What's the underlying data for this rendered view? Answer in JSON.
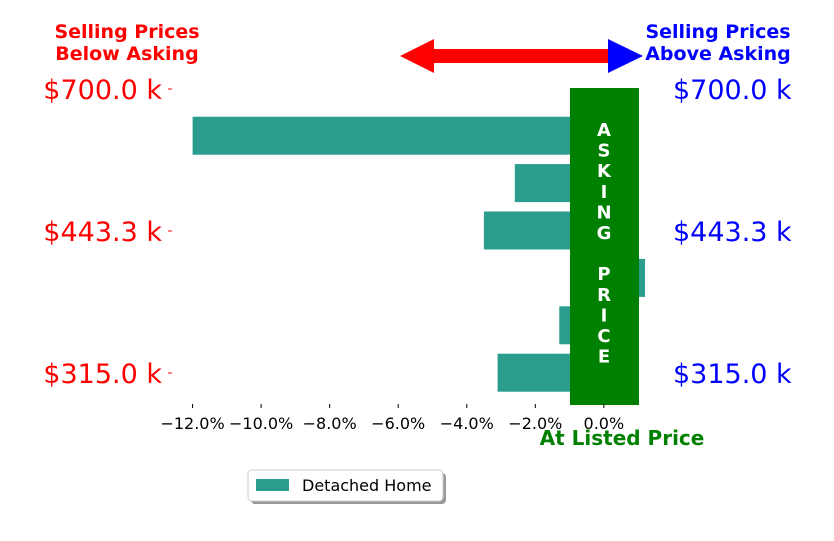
{
  "header": {
    "left_line1": "Selling Prices",
    "left_line2": "Below Asking",
    "right_line1": "Selling Prices",
    "right_line2": "Above Asking"
  },
  "price_labels": {
    "left": [
      "$700.0 k",
      "$443.3 k",
      "$315.0 k"
    ],
    "right": [
      "$700.0 k",
      "$443.3 k",
      "$315.0 k"
    ]
  },
  "asking_letters": [
    "A",
    "S",
    "K",
    "I",
    "N",
    "G",
    "",
    "P",
    "R",
    "I",
    "C",
    "E"
  ],
  "listed_label": "At Listed Price",
  "colors": {
    "bar": "#2a9d8f",
    "asking": "#008000",
    "left_text": "#ff0000",
    "right_text": "#0000ff",
    "arrow_left": "#ff0000",
    "arrow_right": "#0000ff"
  },
  "chart_data": {
    "type": "bar",
    "orientation": "horizontal",
    "series": [
      {
        "name": "Detached Home",
        "values": [
          -12.0,
          -2.6,
          -3.5,
          1.2,
          -1.3,
          -3.1
        ]
      }
    ],
    "xlim": [
      -12.6,
      1.2
    ],
    "x_ticks": [
      -12,
      -10,
      -8,
      -6,
      -4,
      -2,
      0
    ],
    "x_tick_labels": [
      "−12.0%",
      "−10.0%",
      "−8.0%",
      "−6.0%",
      "−4.0%",
      "−2.0%",
      "0.0%"
    ],
    "legend": {
      "placement": "bottom-center",
      "entries": [
        "Detached Home"
      ]
    },
    "grid": false
  }
}
